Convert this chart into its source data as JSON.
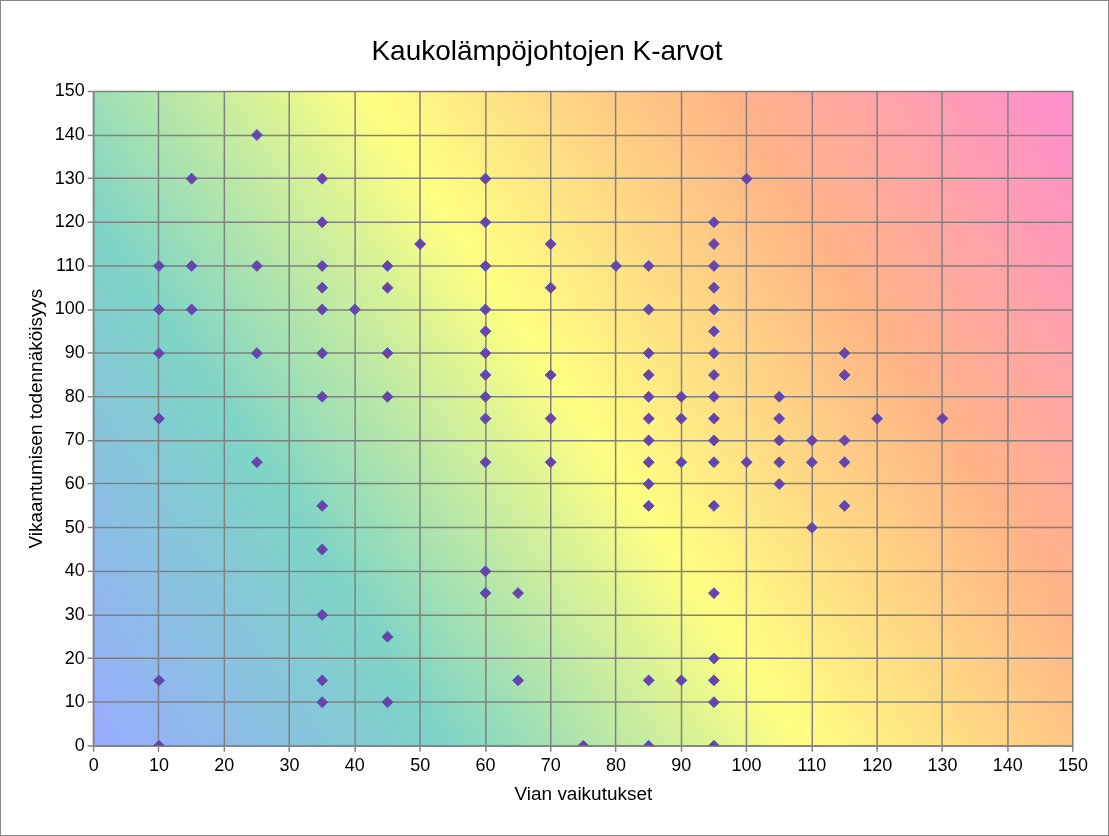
{
  "chart_data": {
    "type": "scatter",
    "title": "Kaukolämpöjohtojen K-arvot",
    "xlabel": "Vian vaikutukset",
    "ylabel": "Vikaantumisen todennäköisyys",
    "x": [
      10,
      10,
      10,
      10,
      10,
      10,
      15,
      15,
      15,
      25,
      25,
      25,
      25,
      35,
      35,
      35,
      35,
      35,
      35,
      35,
      35,
      35,
      35,
      35,
      35,
      40,
      45,
      45,
      45,
      45,
      45,
      45,
      50,
      60,
      60,
      60,
      60,
      60,
      60,
      60,
      60,
      60,
      60,
      60,
      60,
      65,
      65,
      70,
      70,
      70,
      70,
      70,
      75,
      80,
      85,
      85,
      85,
      85,
      85,
      85,
      85,
      85,
      85,
      85,
      85,
      85,
      90,
      90,
      90,
      90,
      95,
      95,
      95,
      95,
      95,
      95,
      95,
      95,
      95,
      95,
      95,
      95,
      95,
      95,
      95,
      95,
      95,
      95,
      100,
      100,
      105,
      105,
      105,
      105,
      105,
      110,
      110,
      110,
      115,
      115,
      115,
      115,
      115,
      120,
      130
    ],
    "values": [
      110,
      100,
      90,
      75,
      15,
      0,
      130,
      110,
      100,
      140,
      110,
      90,
      65,
      130,
      120,
      110,
      105,
      100,
      90,
      80,
      55,
      45,
      30,
      15,
      10,
      100,
      110,
      105,
      90,
      80,
      25,
      10,
      115,
      130,
      120,
      110,
      100,
      95,
      90,
      85,
      80,
      75,
      65,
      40,
      35,
      35,
      15,
      115,
      105,
      85,
      75,
      65,
      0,
      110,
      110,
      100,
      90,
      85,
      80,
      75,
      70,
      65,
      60,
      55,
      15,
      0,
      80,
      75,
      65,
      15,
      120,
      115,
      110,
      105,
      100,
      95,
      90,
      85,
      80,
      75,
      70,
      65,
      55,
      35,
      20,
      15,
      10,
      0,
      130,
      65,
      80,
      75,
      70,
      65,
      60,
      70,
      65,
      50,
      90,
      85,
      70,
      65,
      55,
      75,
      75
    ],
    "color": "#7040a8",
    "marker": "diamond",
    "xlim": [
      0,
      150
    ],
    "xticks": [
      0,
      10,
      20,
      30,
      40,
      50,
      60,
      70,
      80,
      90,
      100,
      110,
      120,
      130,
      140,
      150
    ],
    "ylim": [
      0,
      150
    ],
    "yticks": [
      0,
      10,
      20,
      30,
      40,
      50,
      60,
      70,
      80,
      90,
      100,
      110,
      120,
      130,
      140,
      150
    ],
    "grid": true,
    "legend": false
  }
}
